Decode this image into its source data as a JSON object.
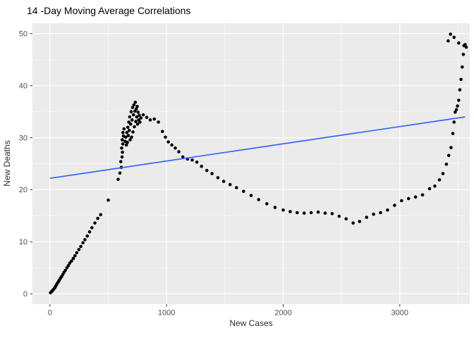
{
  "title": "14 -Day Moving Average Correlations",
  "chart_data": {
    "type": "scatter",
    "title": "14 -Day Moving Average Correlations",
    "xlabel": "New Cases",
    "ylabel": "New Deaths",
    "xlim": [
      -150,
      3600
    ],
    "ylim": [
      -2,
      52
    ],
    "x_ticks": [
      0,
      1000,
      2000,
      3000
    ],
    "y_ticks": [
      0,
      10,
      20,
      30,
      40,
      50
    ],
    "x_minor_ticks": [
      500,
      1500,
      2500,
      3500
    ],
    "y_minor_ticks": [
      5,
      15,
      25,
      35,
      45
    ],
    "grid": true,
    "legend": "none",
    "panel_background": "#EBEBEB",
    "grid_major_color": "#FFFFFF",
    "grid_minor_color": "#F7F7F7",
    "point_color": "#000000",
    "tick_color": "#333333",
    "trend_line": {
      "color": "#3366FF",
      "x1": 0,
      "y1": 22.2,
      "x2": 3560,
      "y2": 34.0
    },
    "points": [
      [
        5,
        0.2
      ],
      [
        12,
        0.4
      ],
      [
        18,
        0.5
      ],
      [
        25,
        0.7
      ],
      [
        32,
        0.9
      ],
      [
        40,
        1.1
      ],
      [
        48,
        1.4
      ],
      [
        55,
        1.7
      ],
      [
        63,
        2.0
      ],
      [
        72,
        2.3
      ],
      [
        80,
        2.6
      ],
      [
        90,
        3.0
      ],
      [
        100,
        3.3
      ],
      [
        110,
        3.7
      ],
      [
        120,
        4.1
      ],
      [
        132,
        4.5
      ],
      [
        145,
        5.0
      ],
      [
        158,
        5.4
      ],
      [
        170,
        5.9
      ],
      [
        185,
        6.3
      ],
      [
        200,
        6.8
      ],
      [
        215,
        7.3
      ],
      [
        230,
        7.9
      ],
      [
        248,
        8.5
      ],
      [
        265,
        9.1
      ],
      [
        283,
        9.8
      ],
      [
        300,
        10.4
      ],
      [
        320,
        11.1
      ],
      [
        340,
        11.9
      ],
      [
        360,
        12.7
      ],
      [
        385,
        13.6
      ],
      [
        410,
        14.5
      ],
      [
        435,
        15.2
      ],
      [
        500,
        18.0
      ],
      [
        585,
        22.0
      ],
      [
        600,
        23.2
      ],
      [
        612,
        24.3
      ],
      [
        608,
        25.4
      ],
      [
        618,
        26.3
      ],
      [
        622,
        27.2
      ],
      [
        615,
        28.0
      ],
      [
        625,
        28.8
      ],
      [
        620,
        29.6
      ],
      [
        630,
        30.3
      ],
      [
        626,
        31.0
      ],
      [
        635,
        31.7
      ],
      [
        645,
        29.3
      ],
      [
        650,
        30.1
      ],
      [
        655,
        28.6
      ],
      [
        660,
        31.0
      ],
      [
        664,
        29.1
      ],
      [
        668,
        32.0
      ],
      [
        672,
        30.4
      ],
      [
        676,
        33.0
      ],
      [
        680,
        31.4
      ],
      [
        684,
        34.0
      ],
      [
        688,
        29.6
      ],
      [
        692,
        32.6
      ],
      [
        696,
        35.0
      ],
      [
        700,
        30.1
      ],
      [
        704,
        33.4
      ],
      [
        708,
        35.8
      ],
      [
        712,
        31.1
      ],
      [
        716,
        34.4
      ],
      [
        720,
        36.3
      ],
      [
        724,
        32.1
      ],
      [
        728,
        35.1
      ],
      [
        732,
        36.8
      ],
      [
        736,
        33.1
      ],
      [
        740,
        35.5
      ],
      [
        744,
        34.0
      ],
      [
        748,
        36.0
      ],
      [
        752,
        32.6
      ],
      [
        756,
        34.9
      ],
      [
        760,
        33.4
      ],
      [
        766,
        34.3
      ],
      [
        772,
        33.0
      ],
      [
        780,
        33.8
      ],
      [
        800,
        34.4
      ],
      [
        830,
        33.9
      ],
      [
        860,
        33.4
      ],
      [
        895,
        33.6
      ],
      [
        930,
        33.0
      ],
      [
        965,
        31.2
      ],
      [
        990,
        30.1
      ],
      [
        1015,
        29.2
      ],
      [
        1045,
        28.6
      ],
      [
        1075,
        28.0
      ],
      [
        1105,
        27.3
      ],
      [
        1140,
        26.3
      ],
      [
        1180,
        25.9
      ],
      [
        1220,
        25.7
      ],
      [
        1260,
        25.3
      ],
      [
        1300,
        24.5
      ],
      [
        1345,
        23.7
      ],
      [
        1390,
        23.1
      ],
      [
        1440,
        22.3
      ],
      [
        1490,
        21.6
      ],
      [
        1545,
        21.0
      ],
      [
        1600,
        20.4
      ],
      [
        1660,
        19.7
      ],
      [
        1725,
        18.9
      ],
      [
        1790,
        18.1
      ],
      [
        1860,
        17.3
      ],
      [
        1930,
        16.6
      ],
      [
        2000,
        16.1
      ],
      [
        2060,
        15.8
      ],
      [
        2120,
        15.6
      ],
      [
        2180,
        15.5
      ],
      [
        2240,
        15.6
      ],
      [
        2300,
        15.7
      ],
      [
        2360,
        15.5
      ],
      [
        2420,
        15.4
      ],
      [
        2480,
        14.9
      ],
      [
        2540,
        14.4
      ],
      [
        2600,
        13.6
      ],
      [
        2655,
        13.9
      ],
      [
        2715,
        14.7
      ],
      [
        2775,
        15.3
      ],
      [
        2835,
        15.6
      ],
      [
        2895,
        16.1
      ],
      [
        2955,
        17.0
      ],
      [
        3015,
        17.9
      ],
      [
        3075,
        18.3
      ],
      [
        3135,
        18.6
      ],
      [
        3195,
        19.0
      ],
      [
        3255,
        20.2
      ],
      [
        3300,
        20.7
      ],
      [
        3340,
        21.9
      ],
      [
        3370,
        23.1
      ],
      [
        3400,
        24.9
      ],
      [
        3420,
        26.6
      ],
      [
        3440,
        28.1
      ],
      [
        3455,
        30.8
      ],
      [
        3465,
        33.0
      ],
      [
        3475,
        34.9
      ],
      [
        3485,
        35.4
      ],
      [
        3495,
        36.1
      ],
      [
        3505,
        37.2
      ],
      [
        3515,
        39.2
      ],
      [
        3525,
        41.2
      ],
      [
        3535,
        43.6
      ],
      [
        3545,
        46.0
      ],
      [
        3550,
        47.7
      ],
      [
        3560,
        47.9
      ],
      [
        3570,
        47.4
      ],
      [
        3505,
        48.2
      ],
      [
        3465,
        49.3
      ],
      [
        3435,
        49.9
      ],
      [
        3415,
        48.6
      ]
    ]
  }
}
